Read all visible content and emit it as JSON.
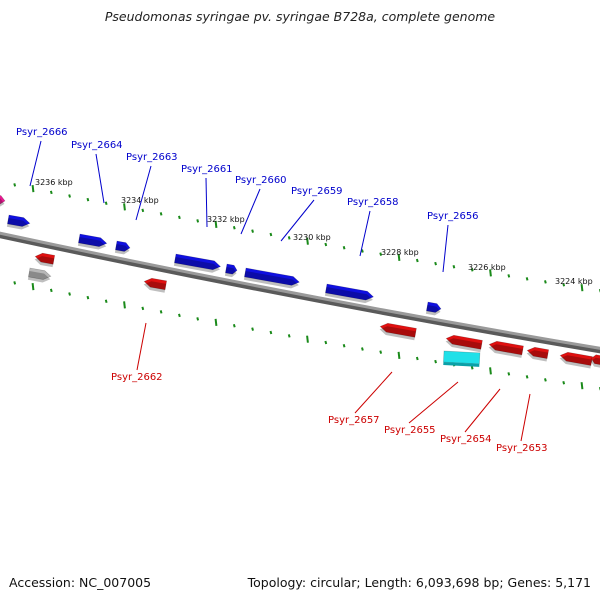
{
  "title": "Pseudomonas syringae pv. syringae B728a, complete genome",
  "footer": {
    "accession": "Accession: NC_007005",
    "summary": "Topology: circular; Length: 6,093,698 bp; Genes: 5,171"
  },
  "colors": {
    "backbone": "#8a8a8a",
    "tick": "#1a8a1a",
    "forward_gene": "#1010e0",
    "reverse_gene": "#e01010",
    "forward_label": "#0000cc",
    "reverse_label": "#cc0000",
    "rna_gene": "#20e0e8",
    "pseudo_gene": "#b8b8b8",
    "other_gene": "#e81890",
    "scale_label": "#111111"
  },
  "scale_labels": [
    "3236 kbp",
    "3234 kbp",
    "3232 kbp",
    "3230 kbp",
    "3228 kbp",
    "3226 kbp",
    "3224 kbp"
  ],
  "forward_labels": [
    "Psyr_2666",
    "Psyr_2664",
    "Psyr_2663",
    "Psyr_2661",
    "Psyr_2660",
    "Psyr_2659",
    "Psyr_2658",
    "Psyr_2656"
  ],
  "reverse_labels": [
    "Psyr_2662",
    "Psyr_2657",
    "Psyr_2655",
    "Psyr_2654",
    "Psyr_2653"
  ]
}
